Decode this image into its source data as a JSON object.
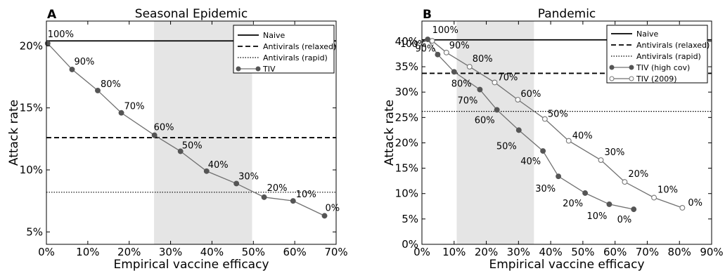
{
  "chart_data": [
    {
      "type": "line",
      "panel": "A",
      "title": "Seasonal Epidemic",
      "xlabel": "Empirical vaccine efficacy",
      "ylabel": "Attack rate",
      "xlim": [
        0,
        70
      ],
      "ylim": [
        4,
        22
      ],
      "xticks": [
        0,
        10,
        20,
        30,
        40,
        50,
        60,
        70
      ],
      "xtick_labels": [
        "0%",
        "10%",
        "20%",
        "30%",
        "40%",
        "50%",
        "60%",
        "70%"
      ],
      "yticks": [
        5,
        10,
        15,
        20
      ],
      "ytick_labels": [
        "5%",
        "10%",
        "15%",
        "20%"
      ],
      "shaded_region": [
        26,
        49.7
      ],
      "grid": false,
      "legend_position": "top-right",
      "hlines": [
        {
          "name": "Naive",
          "y": 20.4,
          "style": "solid"
        },
        {
          "name": "Antivirals (relaxed)",
          "y": 12.6,
          "style": "dashed"
        },
        {
          "name": "Antivirals (rapid)",
          "y": 8.2,
          "style": "dotted"
        }
      ],
      "series": [
        {
          "name": "TIV",
          "marker": "filled",
          "x": [
            0.3,
            6.2,
            12.4,
            18.1,
            26.1,
            32.4,
            38.7,
            45.9,
            52.6,
            59.6,
            67.2
          ],
          "y": [
            20.2,
            18.1,
            16.4,
            14.6,
            12.8,
            11.5,
            9.9,
            8.9,
            7.8,
            7.5,
            6.3
          ],
          "labels": [
            "100%",
            "90%",
            "80%",
            "70%",
            "60%",
            "50%",
            "40%",
            "30%",
            "20%",
            "10%",
            "0%"
          ]
        }
      ]
    },
    {
      "type": "line",
      "panel": "B",
      "title": "Pandemic",
      "xlabel": "Empirical vaccine efficacy",
      "ylabel": "Attack rate",
      "xlim": [
        0,
        90
      ],
      "ylim": [
        0,
        44
      ],
      "xticks": [
        0,
        10,
        20,
        30,
        40,
        50,
        60,
        70,
        80,
        90
      ],
      "xtick_labels": [
        "0%",
        "10%",
        "20%",
        "30%",
        "40%",
        "50%",
        "60%",
        "70%",
        "80%",
        "90%"
      ],
      "yticks": [
        0,
        5,
        10,
        15,
        20,
        25,
        30,
        35,
        40
      ],
      "ytick_labels": [
        "0%",
        "5%",
        "10%",
        "15%",
        "20%",
        "25%",
        "30%",
        "35%",
        "40%"
      ],
      "shaded_region": [
        10.8,
        34.8
      ],
      "grid": false,
      "legend_position": "top-right",
      "hlines": [
        {
          "name": "Naive",
          "y": 40.3,
          "style": "solid"
        },
        {
          "name": "Antivirals (relaxed)",
          "y": 33.7,
          "style": "dashed"
        },
        {
          "name": "Antivirals (rapid)",
          "y": 26.2,
          "style": "dotted"
        }
      ],
      "series": [
        {
          "name": "TIV (high cov)",
          "marker": "filled",
          "x": [
            1.8,
            4.9,
            10.0,
            18.0,
            23.3,
            30.1,
            37.6,
            42.4,
            50.7,
            58.2,
            65.8
          ],
          "y": [
            40.4,
            37.4,
            34.0,
            30.5,
            26.5,
            22.5,
            18.4,
            13.4,
            10.1,
            7.9,
            6.9
          ],
          "labels": [
            "100%",
            "90%",
            "80%",
            "70%",
            "60%",
            "50%",
            "40%",
            "30%",
            "20%",
            "10%",
            "0%"
          ]
        },
        {
          "name": "TIV (2009)",
          "marker": "open",
          "x": [
            3.2,
            7.6,
            14.8,
            22.6,
            29.8,
            38.2,
            45.6,
            55.6,
            63.0,
            72.1,
            80.9
          ],
          "y": [
            40.1,
            37.8,
            35.0,
            31.9,
            28.5,
            24.7,
            20.4,
            16.6,
            12.3,
            9.2,
            7.2
          ],
          "labels": [
            "100%",
            "90%",
            "80%",
            "70%",
            "60%",
            "50%",
            "40%",
            "30%",
            "20%",
            "10%",
            "0%"
          ]
        }
      ]
    }
  ]
}
